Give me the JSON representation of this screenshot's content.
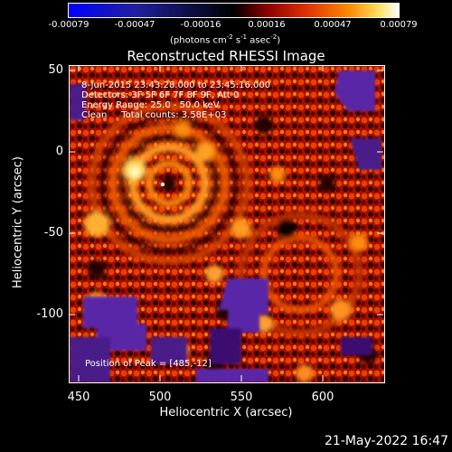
{
  "colorbar": {
    "ticks": [
      "-0.00079",
      "-0.00047",
      "-0.00016",
      "0.00016",
      "0.00047",
      "0.00079"
    ],
    "unit_main": "(photons cm",
    "unit_sup1": "-2",
    "unit_mid": " s",
    "unit_sup2": "-1",
    "unit_end": " asec",
    "unit_sup3": "-2",
    "unit_close": ")"
  },
  "title": "Reconstructed RHESSI Image",
  "info": {
    "line1": "8-Jun-2015 23:43:28.000 to 23:45:16.000",
    "line2": "Detectors: 3F 5F 6F 7F 8F 9F, Att 0",
    "line3": "Energy Range: 25.0 - 50.0 keV",
    "line4": "Clean     Total counts: 3.58E+03",
    "peak": "Position of Peak = [485,-12]"
  },
  "axes": {
    "xlabel": "Heliocentric X (arcsec)",
    "ylabel": "Heliocentric Y (arcsec)",
    "xticks": [
      "450",
      "500",
      "550",
      "600"
    ],
    "yticks": [
      "50",
      "0",
      "-50",
      "-100"
    ]
  },
  "timestamp": "21-May-2022 16:47",
  "colors": {
    "cb_start": "#0000ff",
    "cb_mid": "#000000",
    "cb_red": "#cc1000",
    "cb_orange": "#ff8000",
    "cb_end": "#ffffff",
    "purple": "#5a28a8"
  }
}
